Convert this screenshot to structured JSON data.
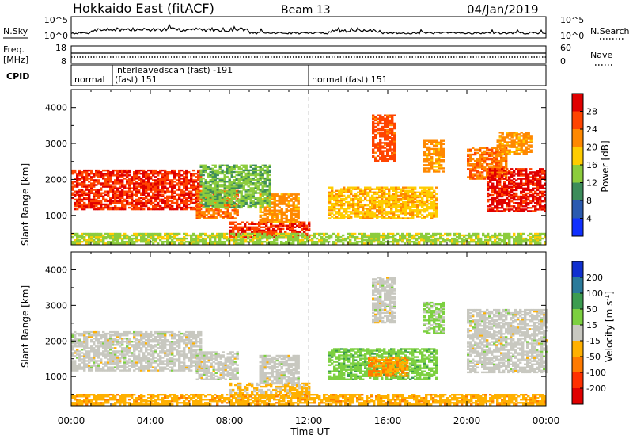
{
  "header": {
    "title": "Hokkaido East (fitACF)",
    "beam": "Beam 13",
    "date": "04/Jan/2019"
  },
  "noise_panel": {
    "left_label": "N.Sky",
    "right_label": "N.Search",
    "left_ticks": [
      "10^5",
      "10^0"
    ],
    "right_ticks": [
      "10^5",
      "10^0"
    ]
  },
  "freq_panel": {
    "left_label_top": "Freq.",
    "left_label_bottom": "[MHz]",
    "right_label": "Nave",
    "left_ticks": [
      "18",
      "8"
    ],
    "right_ticks": [
      "60",
      "0"
    ],
    "freq_mhz": 11.2,
    "nave": 21
  },
  "cpid_panel": {
    "label": "CPID",
    "segments": [
      {
        "label": "normal",
        "start": "00:00"
      },
      {
        "label": "interleavedscan (fast) -191",
        "start": "01:45"
      },
      {
        "label": "(fast) 151",
        "start": "01:45"
      },
      {
        "label": "normal (fast) 151",
        "start": "12:00"
      }
    ]
  },
  "x_axis": {
    "ticks": [
      "00:00",
      "04:00",
      "08:00",
      "12:00",
      "16:00",
      "20:00",
      "00:00"
    ],
    "label": "Time UT"
  },
  "power_colorbar": {
    "label": "Power [dB]",
    "ticks": [
      "28",
      "24",
      "20",
      "16",
      "12",
      "8",
      "4"
    ],
    "colors": [
      "#e00000",
      "#ff4400",
      "#ff8800",
      "#ffcc00",
      "#8ccc3c",
      "#3c8c5a",
      "#2a5ab0",
      "#1030ff"
    ]
  },
  "velocity_colorbar": {
    "label": "Velocity [m s^-1]",
    "ticks": [
      "200",
      "100",
      "50",
      "15",
      "-15",
      "-50",
      "-100",
      "-200"
    ],
    "colors": [
      "#1030d0",
      "#2a7a9a",
      "#3c9c50",
      "#7cd040",
      "#c8c8c0",
      "#ffb000",
      "#ff7a00",
      "#ff3000",
      "#e00000"
    ]
  },
  "chart_data": [
    {
      "type": "heatmap",
      "title": "Hokkaido East (fitACF) Beam 13 04/Jan/2019",
      "xlabel": "Time UT",
      "ylabel": "Slant Range [km]",
      "xlim_hours": [
        0,
        24
      ],
      "ylim_km": [
        180,
        4500
      ],
      "yticks": [
        1000,
        2000,
        3000,
        4000
      ],
      "colorbar": {
        "label": "Power [dB]",
        "range": [
          0,
          30
        ]
      },
      "regions": [
        {
          "t0": 0.0,
          "t1": 6.5,
          "r0": 1150,
          "r1": 2250,
          "value": 26
        },
        {
          "t0": 6.3,
          "t1": 8.4,
          "r0": 900,
          "r1": 1700,
          "value": 22
        },
        {
          "t0": 8.0,
          "t1": 12.0,
          "r0": 380,
          "r1": 800,
          "value": 26
        },
        {
          "t0": 9.5,
          "t1": 11.5,
          "r0": 800,
          "r1": 1600,
          "value": 20
        },
        {
          "t0": 6.5,
          "t1": 10.0,
          "r0": 1200,
          "r1": 2400,
          "value": 12
        },
        {
          "t0": 13.0,
          "t1": 18.5,
          "r0": 900,
          "r1": 1800,
          "value": 18
        },
        {
          "t0": 15.2,
          "t1": 16.3,
          "r0": 2500,
          "r1": 3800,
          "value": 24
        },
        {
          "t0": 17.8,
          "t1": 18.8,
          "r0": 2200,
          "r1": 3100,
          "value": 20
        },
        {
          "t0": 20.0,
          "t1": 22.0,
          "r0": 2000,
          "r1": 2900,
          "value": 22
        },
        {
          "t0": 21.0,
          "t1": 24.0,
          "r0": 1100,
          "r1": 2300,
          "value": 27
        },
        {
          "t0": 21.5,
          "t1": 23.3,
          "r0": 2700,
          "r1": 3300,
          "value": 20
        },
        {
          "t0": 0.0,
          "t1": 24.0,
          "r0": 200,
          "r1": 500,
          "value": 14
        }
      ]
    },
    {
      "type": "heatmap",
      "title": "",
      "xlabel": "Time UT",
      "ylabel": "Slant Range [km]",
      "xlim_hours": [
        0,
        24
      ],
      "ylim_km": [
        180,
        4500
      ],
      "yticks": [
        1000,
        2000,
        3000,
        4000
      ],
      "colorbar": {
        "label": "Velocity [m s^-1]",
        "range": [
          -250,
          250
        ]
      },
      "regions": [
        {
          "t0": 0.0,
          "t1": 6.5,
          "r0": 1150,
          "r1": 2250,
          "value": 0
        },
        {
          "t0": 6.3,
          "t1": 8.4,
          "r0": 900,
          "r1": 1700,
          "value": 0
        },
        {
          "t0": 8.0,
          "t1": 12.0,
          "r0": 380,
          "r1": 800,
          "value": -40
        },
        {
          "t0": 9.5,
          "t1": 11.5,
          "r0": 800,
          "r1": 1600,
          "value": 0
        },
        {
          "t0": 13.0,
          "t1": 18.5,
          "r0": 900,
          "r1": 1800,
          "value": 60
        },
        {
          "t0": 15.0,
          "t1": 17.0,
          "r0": 1000,
          "r1": 1500,
          "value": -80
        },
        {
          "t0": 15.2,
          "t1": 16.3,
          "r0": 2500,
          "r1": 3800,
          "value": 0
        },
        {
          "t0": 17.8,
          "t1": 18.8,
          "r0": 2200,
          "r1": 3100,
          "value": 40
        },
        {
          "t0": 20.0,
          "t1": 24.0,
          "r0": 1100,
          "r1": 2900,
          "value": 0
        },
        {
          "t0": 0.0,
          "t1": 24.0,
          "r0": 200,
          "r1": 500,
          "value": -60
        }
      ]
    }
  ]
}
